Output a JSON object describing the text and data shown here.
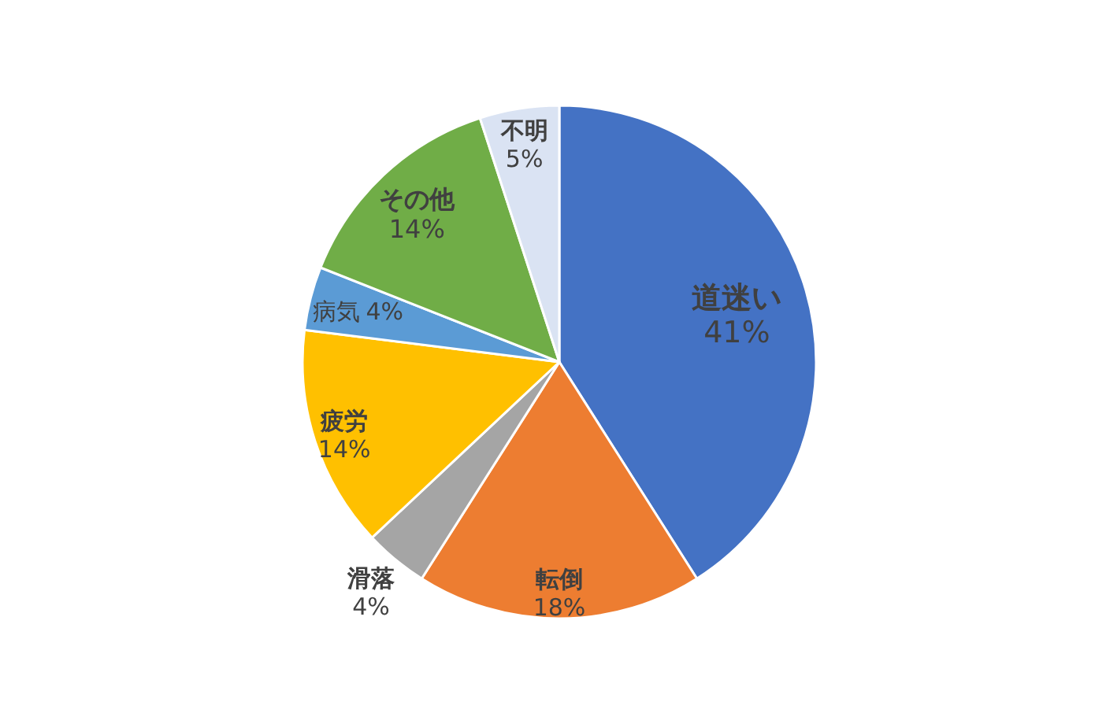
{
  "chart_data": {
    "type": "pie",
    "categories": [
      "道迷い",
      "転倒",
      "滑落",
      "疲労",
      "病気",
      "その他",
      "不明"
    ],
    "values": [
      41,
      18,
      4,
      14,
      4,
      14,
      5
    ],
    "colors": [
      "#4472c4",
      "#ed7d31",
      "#a5a5a5",
      "#ffc000",
      "#5b9bd5",
      "#70ad47",
      "#dae3f3"
    ],
    "value_labels": [
      "41%",
      "18%",
      "4%",
      "14%",
      "4%",
      "14%",
      "5%"
    ]
  }
}
